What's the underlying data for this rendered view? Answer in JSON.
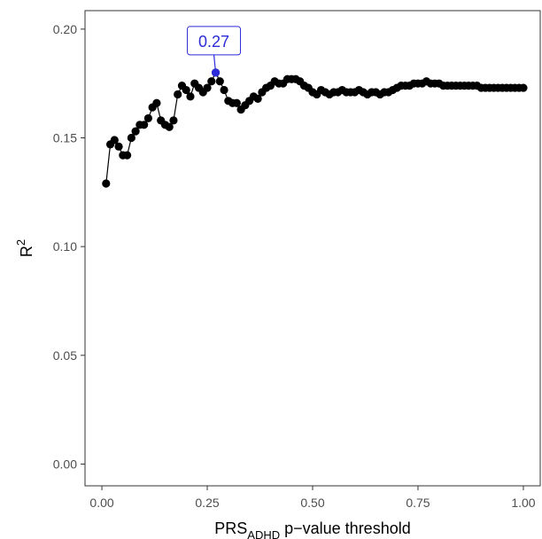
{
  "chart_data": {
    "type": "scatter",
    "xlabel": {
      "main": "PRS",
      "sub": "ADHD",
      "rest": " p−value threshold"
    },
    "ylabel": {
      "main": "R",
      "sup": "2"
    },
    "xlim": [
      -0.04,
      1.04
    ],
    "ylim": [
      -0.01,
      0.2085
    ],
    "x_ticks": [
      {
        "value": 0.0,
        "label": "0.00"
      },
      {
        "value": 0.25,
        "label": "0.25"
      },
      {
        "value": 0.5,
        "label": "0.50"
      },
      {
        "value": 0.75,
        "label": "0.75"
      },
      {
        "value": 1.0,
        "label": "1.00"
      }
    ],
    "y_ticks": [
      {
        "value": 0.0,
        "label": "0.00"
      },
      {
        "value": 0.05,
        "label": "0.05"
      },
      {
        "value": 0.1,
        "label": "0.10"
      },
      {
        "value": 0.15,
        "label": "0.15"
      },
      {
        "value": 0.2,
        "label": "0.20"
      }
    ],
    "grid": false,
    "series": [
      {
        "color": "#000000",
        "x": [
          0.01,
          0.02,
          0.03,
          0.04,
          0.05,
          0.06,
          0.07,
          0.08,
          0.09,
          0.1,
          0.11,
          0.12,
          0.13,
          0.14,
          0.15,
          0.16,
          0.17,
          0.18,
          0.19,
          0.2,
          0.21,
          0.22,
          0.23,
          0.24,
          0.25,
          0.26,
          0.27,
          0.28,
          0.29,
          0.3,
          0.31,
          0.32,
          0.33,
          0.34,
          0.35,
          0.36,
          0.37,
          0.38,
          0.39,
          0.4,
          0.41,
          0.42,
          0.43,
          0.44,
          0.45,
          0.46,
          0.47,
          0.48,
          0.49,
          0.5,
          0.51,
          0.52,
          0.53,
          0.54,
          0.55,
          0.56,
          0.57,
          0.58,
          0.59,
          0.6,
          0.61,
          0.62,
          0.63,
          0.64,
          0.65,
          0.66,
          0.67,
          0.68,
          0.69,
          0.7,
          0.71,
          0.72,
          0.73,
          0.74,
          0.75,
          0.76,
          0.77,
          0.78,
          0.79,
          0.8,
          0.81,
          0.82,
          0.83,
          0.84,
          0.85,
          0.86,
          0.87,
          0.88,
          0.89,
          0.9,
          0.91,
          0.92,
          0.93,
          0.94,
          0.95,
          0.96,
          0.97,
          0.98,
          0.99,
          1.0
        ],
        "y": [
          0.129,
          0.147,
          0.149,
          0.146,
          0.142,
          0.142,
          0.15,
          0.153,
          0.156,
          0.156,
          0.159,
          0.164,
          0.166,
          0.158,
          0.156,
          0.155,
          0.158,
          0.17,
          0.174,
          0.172,
          0.169,
          0.175,
          0.173,
          0.171,
          0.173,
          0.176,
          0.18,
          0.176,
          0.172,
          0.167,
          0.166,
          0.166,
          0.163,
          0.165,
          0.167,
          0.169,
          0.168,
          0.171,
          0.173,
          0.174,
          0.176,
          0.175,
          0.175,
          0.177,
          0.177,
          0.177,
          0.176,
          0.174,
          0.173,
          0.171,
          0.17,
          0.172,
          0.171,
          0.17,
          0.171,
          0.171,
          0.172,
          0.171,
          0.171,
          0.171,
          0.172,
          0.171,
          0.17,
          0.171,
          0.171,
          0.17,
          0.171,
          0.171,
          0.172,
          0.173,
          0.174,
          0.174,
          0.174,
          0.175,
          0.175,
          0.175,
          0.176,
          0.175,
          0.175,
          0.175,
          0.174,
          0.174,
          0.174,
          0.174,
          0.174,
          0.174,
          0.174,
          0.174,
          0.174,
          0.173,
          0.173,
          0.173,
          0.173,
          0.173,
          0.173,
          0.173,
          0.173,
          0.173,
          0.173,
          0.173
        ]
      }
    ],
    "highlight": {
      "x": 0.27,
      "y": 0.18,
      "label": "0.27",
      "color": "#2b2bd9"
    }
  }
}
